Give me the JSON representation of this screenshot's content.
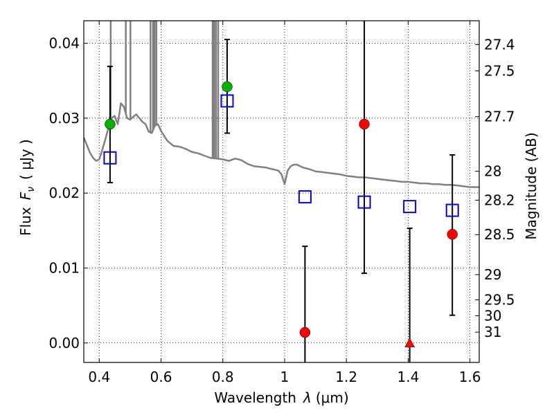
{
  "chart_data": {
    "type": "scatter",
    "xlabel": "Wavelength  λ (μm)",
    "ylabel": "Flux  F_ν  ( μJy )",
    "ylabel_parts": {
      "prefix": "Flux",
      "symbol": "F",
      "subscript": "ν",
      "unit": "( μJy )"
    },
    "xlabel_parts": {
      "prefix": "Wavelength",
      "symbol": "λ",
      "unit": "(μm)"
    },
    "ylabel_right": "Magnitude (AB)",
    "xlim": [
      0.35,
      1.63
    ],
    "ylim": [
      -0.0026,
      0.043
    ],
    "grid": true,
    "x_ticks": [
      "0.4",
      "0.6",
      "0.8",
      "1",
      "1.2",
      "1.4",
      "1.6"
    ],
    "y_ticks": [
      "0.00",
      "0.01",
      "0.02",
      "0.03",
      "0.04"
    ],
    "right_ticks": [
      {
        "label": "27.4",
        "mag": 27.4
      },
      {
        "label": "27.5",
        "mag": 27.5
      },
      {
        "label": "27.7",
        "mag": 27.7
      },
      {
        "label": "28",
        "mag": 28.0
      },
      {
        "label": "28.2",
        "mag": 28.2
      },
      {
        "label": "28.5",
        "mag": 28.5
      },
      {
        "label": "29",
        "mag": 29.0
      },
      {
        "label": "29.5",
        "mag": 29.5
      },
      {
        "label": "30",
        "mag": 30.0
      },
      {
        "label": "31",
        "mag": 31.0
      }
    ],
    "model_color": "#808080",
    "model_spectrum": [
      [
        0.35,
        0.0274
      ],
      [
        0.36,
        0.0264
      ],
      [
        0.37,
        0.0254
      ],
      [
        0.38,
        0.0247
      ],
      [
        0.39,
        0.0243
      ],
      [
        0.4,
        0.0245
      ],
      [
        0.41,
        0.0258
      ],
      [
        0.42,
        0.0272
      ],
      [
        0.43,
        0.0287
      ],
      [
        0.44,
        0.03
      ],
      [
        0.45,
        0.0303
      ],
      [
        0.46,
        0.0292
      ],
      [
        0.47,
        0.032
      ],
      [
        0.48,
        0.0315
      ],
      [
        0.49,
        0.03
      ],
      [
        0.5,
        0.0298
      ],
      [
        0.51,
        0.0302
      ],
      [
        0.52,
        0.0305
      ],
      [
        0.53,
        0.03
      ],
      [
        0.54,
        0.0295
      ],
      [
        0.55,
        0.0292
      ],
      [
        0.56,
        0.0282
      ],
      [
        0.57,
        0.028
      ],
      [
        0.58,
        0.029
      ],
      [
        0.59,
        0.0292
      ],
      [
        0.6,
        0.0283
      ],
      [
        0.62,
        0.027
      ],
      [
        0.64,
        0.0263
      ],
      [
        0.66,
        0.0262
      ],
      [
        0.68,
        0.0259
      ],
      [
        0.7,
        0.0255
      ],
      [
        0.72,
        0.0253
      ],
      [
        0.74,
        0.025
      ],
      [
        0.76,
        0.0247
      ],
      [
        0.78,
        0.0246
      ],
      [
        0.8,
        0.0245
      ],
      [
        0.82,
        0.0243
      ],
      [
        0.84,
        0.0246
      ],
      [
        0.86,
        0.0244
      ],
      [
        0.88,
        0.0239
      ],
      [
        0.9,
        0.0236
      ],
      [
        0.92,
        0.0235
      ],
      [
        0.94,
        0.0234
      ],
      [
        0.96,
        0.0232
      ],
      [
        0.98,
        0.023
      ],
      [
        0.99,
        0.0225
      ],
      [
        1.0,
        0.0212
      ],
      [
        1.01,
        0.023
      ],
      [
        1.02,
        0.0236
      ],
      [
        1.03,
        0.0238
      ],
      [
        1.04,
        0.0238
      ],
      [
        1.05,
        0.0236
      ],
      [
        1.06,
        0.0234
      ],
      [
        1.08,
        0.0232
      ],
      [
        1.1,
        0.0229
      ],
      [
        1.12,
        0.0228
      ],
      [
        1.14,
        0.0227
      ],
      [
        1.16,
        0.0226
      ],
      [
        1.18,
        0.0225
      ],
      [
        1.2,
        0.0223
      ],
      [
        1.22,
        0.0222
      ],
      [
        1.24,
        0.0221
      ],
      [
        1.26,
        0.0221
      ],
      [
        1.28,
        0.022
      ],
      [
        1.3,
        0.0219
      ],
      [
        1.32,
        0.0218
      ],
      [
        1.34,
        0.0217
      ],
      [
        1.36,
        0.0216
      ],
      [
        1.38,
        0.0215
      ],
      [
        1.4,
        0.0215
      ],
      [
        1.42,
        0.0214
      ],
      [
        1.44,
        0.0213
      ],
      [
        1.46,
        0.0213
      ],
      [
        1.48,
        0.0212
      ],
      [
        1.5,
        0.0212
      ],
      [
        1.52,
        0.0211
      ],
      [
        1.54,
        0.0211
      ],
      [
        1.56,
        0.021
      ],
      [
        1.58,
        0.0209
      ],
      [
        1.6,
        0.0208
      ],
      [
        1.63,
        0.0208
      ]
    ],
    "emission_lines": [
      {
        "x": 0.437,
        "top": 0.043
      },
      {
        "x": 0.486,
        "top": 0.043
      },
      {
        "x": 0.501,
        "top": 0.043
      },
      {
        "x": 0.566,
        "top": 0.043
      },
      {
        "x": 0.574,
        "top": 0.043
      },
      {
        "x": 0.579,
        "top": 0.043
      },
      {
        "x": 0.585,
        "top": 0.043
      },
      {
        "x": 0.767,
        "top": 0.043
      },
      {
        "x": 0.772,
        "top": 0.043
      },
      {
        "x": 0.778,
        "top": 0.043
      },
      {
        "x": 0.785,
        "top": 0.043
      }
    ],
    "model_points": {
      "color": "#0000cc",
      "points": [
        {
          "x": 0.435,
          "y": 0.0247
        },
        {
          "x": 0.814,
          "y": 0.0323
        },
        {
          "x": 1.066,
          "y": 0.0195
        },
        {
          "x": 1.258,
          "y": 0.0188
        },
        {
          "x": 1.405,
          "y": 0.0182
        },
        {
          "x": 1.543,
          "y": 0.0177
        }
      ]
    },
    "observed_space": {
      "color": "#00b000",
      "points": [
        {
          "x": 0.435,
          "y": 0.0292,
          "y_low": 0.0214,
          "y_high": 0.0369
        },
        {
          "x": 0.814,
          "y": 0.0342,
          "y_low": 0.028,
          "y_high": 0.0405
        }
      ]
    },
    "observed_ground": {
      "color": "#ff0000",
      "points": [
        {
          "x": 1.066,
          "y": 0.0014,
          "y_low": -0.0026,
          "y_high": 0.0129
        },
        {
          "x": 1.258,
          "y": 0.0292,
          "y_low": 0.0093,
          "y_high": 0.043
        },
        {
          "x": 1.543,
          "y": 0.0145,
          "y_low": 0.0037,
          "y_high": 0.0251
        }
      ]
    },
    "upper_limits": {
      "color": "#ff0000",
      "points": [
        {
          "x": 1.405,
          "y": 0.0,
          "y_low": -0.0026,
          "y_high": 0.0153
        }
      ]
    }
  }
}
